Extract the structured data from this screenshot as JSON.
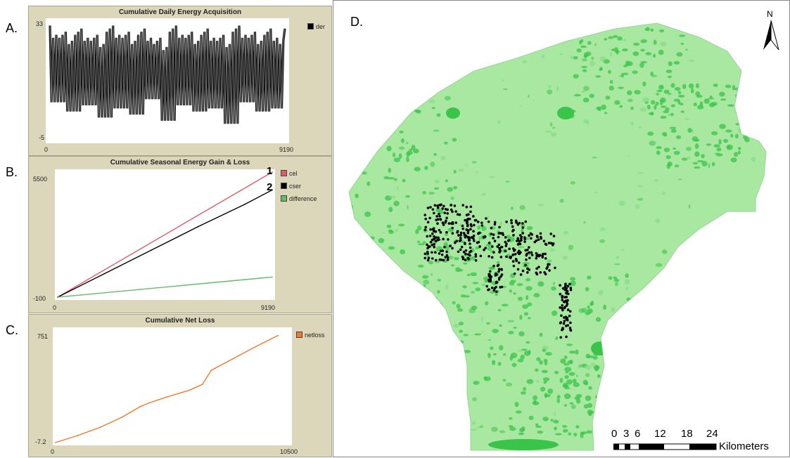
{
  "panel_letters": [
    "A.",
    "B.",
    "C.",
    "D."
  ],
  "chart_data": [
    {
      "type": "line",
      "title": "Cumulative Daily Energy Acquisition",
      "x_ticks": [
        "0",
        "9190"
      ],
      "y_ticks": [
        "-5",
        "33"
      ],
      "xlim": [
        0,
        9190
      ],
      "ylim": [
        -5,
        33
      ],
      "series": [
        {
          "name": "der",
          "color": "#000000",
          "note_shape": "oscillating",
          "x": [
            0,
            300,
            600,
            900,
            1200,
            1500,
            1800,
            2100,
            2400,
            2700,
            3000,
            3300,
            3600,
            3900,
            4200,
            4500,
            4800,
            5100,
            5400,
            5700,
            6000,
            6300,
            6600,
            6900,
            7200,
            7500,
            7800,
            8100,
            8400,
            8700,
            9190
          ],
          "y": [
            32,
            4,
            30,
            1,
            31,
            3,
            29,
            -1,
            32,
            2,
            30,
            0,
            31,
            5,
            28,
            -2,
            32,
            3,
            30,
            1,
            31,
            2,
            29,
            -3,
            32,
            4,
            30,
            1,
            31,
            2,
            28
          ]
        }
      ],
      "legend_position": "top-right"
    },
    {
      "type": "line",
      "title": "Cumulative Seasonal Energy Gain & Loss",
      "x_ticks": [
        "0",
        "9190"
      ],
      "y_ticks": [
        "-100",
        "5500"
      ],
      "xlim": [
        0,
        9190
      ],
      "ylim": [
        -100,
        5500
      ],
      "callouts": [
        "1",
        "2"
      ],
      "series": [
        {
          "name": "cel",
          "color": "#e05a6a",
          "x": [
            0,
            9190
          ],
          "y": [
            -100,
            5500
          ]
        },
        {
          "name": "cser",
          "color": "#000000",
          "x": [
            0,
            2000,
            4000,
            6000,
            8000,
            9190
          ],
          "y": [
            -100,
            950,
            2000,
            3050,
            4050,
            4700
          ]
        },
        {
          "name": "difference",
          "color": "#66bb66",
          "x": [
            0,
            9190
          ],
          "y": [
            -100,
            800
          ]
        }
      ],
      "legend_position": "top-right"
    },
    {
      "type": "line",
      "title": "Cumulative Net Loss",
      "x_ticks": [
        "0",
        "10500"
      ],
      "y_ticks": [
        "-7.2",
        "751"
      ],
      "xlim": [
        0,
        10500
      ],
      "ylim": [
        -7.2,
        751
      ],
      "series": [
        {
          "name": "netloss",
          "color": "#f07a2a",
          "x": [
            0,
            1000,
            2000,
            3000,
            3800,
            4200,
            5000,
            6000,
            6600,
            7000,
            8000,
            9000,
            10000
          ],
          "y": [
            -7.2,
            40,
            95,
            165,
            235,
            260,
            300,
            345,
            385,
            480,
            560,
            640,
            715
          ]
        }
      ],
      "legend_position": "top-right"
    }
  ],
  "map": {
    "north_label": "N",
    "scale_numbers": [
      "0",
      "3",
      "6",
      "12",
      "18",
      "24"
    ],
    "scale_unit": "Kilometers",
    "colors": {
      "base": "#a8e8a0",
      "patch": "#3ac44a",
      "track": "#000000"
    }
  }
}
